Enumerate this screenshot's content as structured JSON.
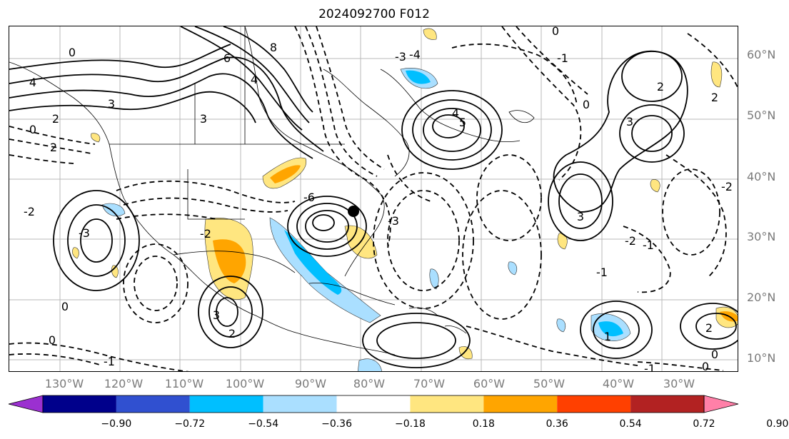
{
  "title": "2024092700 F012",
  "lat_labels": [
    "60°N",
    "50°N",
    "40°N",
    "30°N",
    "20°N",
    "10°N"
  ],
  "lon_labels": [
    "130°W",
    "120°W",
    "110°W",
    "100°W",
    "90°W",
    "80°W",
    "70°W",
    "60°W",
    "50°W",
    "40°W",
    "30°W"
  ],
  "colorbar": {
    "ticks": [
      "−0.90",
      "−0.72",
      "−0.54",
      "−0.36",
      "−0.18",
      "0.18",
      "0.36",
      "0.54",
      "0.72",
      "0.90"
    ],
    "colors": [
      "#9b30d0",
      "#00008b",
      "#3050d0",
      "#00bfff",
      "#aadfff",
      "#ffffff",
      "#ffe680",
      "#ffa500",
      "#ff4000",
      "#b22222",
      "#ff80a8"
    ]
  },
  "contour_labels": [
    "0",
    "4",
    "2",
    "3",
    "6",
    "8",
    "4",
    "3",
    "2",
    "0",
    "-2",
    "-2",
    "-3",
    "-4",
    "-6",
    "-3",
    "0",
    "2",
    "3",
    "4",
    "5",
    "-3",
    "-1",
    "0",
    "-1",
    "3",
    "2",
    "0",
    "-1",
    "0",
    "3",
    "2",
    "-2",
    "-1",
    "-2",
    "0",
    "2",
    "-1",
    "1",
    "0"
  ]
}
